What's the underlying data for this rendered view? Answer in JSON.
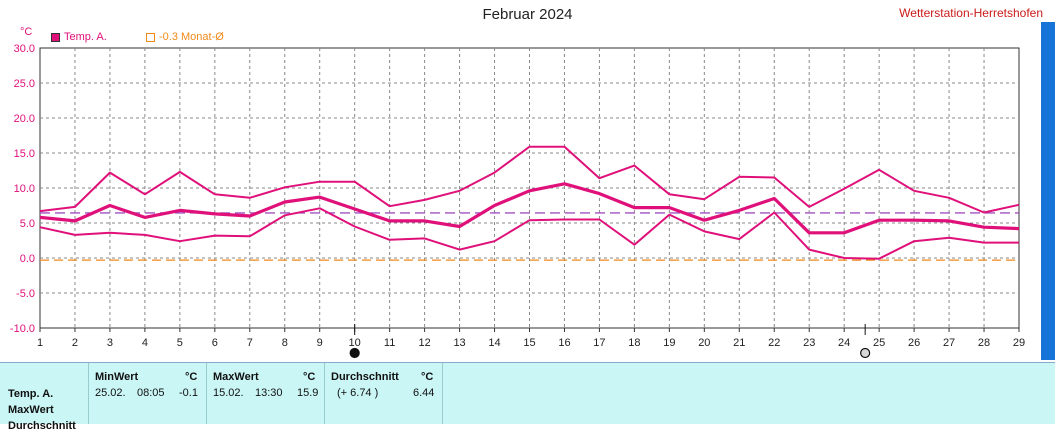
{
  "header": {
    "title": "Februar 2024",
    "station": "Wetterstation-Herretshofen",
    "unit": "°C"
  },
  "legend": [
    {
      "label": "Temp. A.",
      "color": "#e0107a"
    },
    {
      "label": "-0.3 Monat-Ø",
      "color": "#f08a1a"
    }
  ],
  "chart_data": {
    "type": "line",
    "x": [
      1,
      2,
      3,
      4,
      5,
      6,
      7,
      8,
      9,
      10,
      11,
      12,
      13,
      14,
      15,
      16,
      17,
      18,
      19,
      20,
      21,
      22,
      23,
      24,
      25,
      26,
      27,
      28,
      29
    ],
    "xlim": [
      1,
      29
    ],
    "ylim": [
      -10,
      30
    ],
    "yticks": [
      "30.0",
      "25.0",
      "20.0",
      "15.0",
      "10.0",
      "5.0",
      "0.0",
      "-5.0",
      "-10.0"
    ],
    "grid": true,
    "legend_position": "top-left",
    "series": [
      {
        "name": "Temp. A.",
        "role": "max",
        "values": [
          6.7,
          7.3,
          12.2,
          9.1,
          12.3,
          9.1,
          8.6,
          10.1,
          10.9,
          10.9,
          7.4,
          8.3,
          9.6,
          12.2,
          15.9,
          15.9,
          11.4,
          13.2,
          9.1,
          8.4,
          11.6,
          11.5,
          7.3,
          9.9,
          12.6,
          9.6,
          8.6,
          6.5,
          7.6
        ]
      },
      {
        "name": "Temp. A.",
        "role": "mean",
        "values": [
          5.8,
          5.3,
          7.5,
          5.8,
          6.8,
          6.3,
          6.0,
          8.0,
          8.7,
          7.0,
          5.3,
          5.3,
          4.5,
          7.5,
          9.6,
          10.6,
          9.2,
          7.2,
          7.2,
          5.4,
          6.8,
          8.5,
          3.6,
          3.6,
          5.4,
          5.4,
          5.3,
          4.4,
          4.2
        ]
      },
      {
        "name": "Temp. A.",
        "role": "min",
        "values": [
          4.4,
          3.3,
          3.6,
          3.3,
          2.4,
          3.2,
          3.1,
          6.1,
          7.1,
          4.5,
          2.6,
          2.8,
          1.2,
          2.4,
          5.4,
          5.5,
          5.5,
          1.9,
          6.2,
          3.8,
          2.7,
          6.5,
          1.2,
          0.0,
          -0.1,
          2.4,
          2.9,
          2.2,
          2.2
        ]
      }
    ],
    "reference_lines": [
      {
        "label": "-0.3 Monat-Ø",
        "value": -0.3,
        "color": "#f08a1a"
      },
      {
        "value": 6.44,
        "color": "#a050c0"
      }
    ],
    "markers": [
      {
        "x": 10,
        "symbol": "new-moon-icon"
      },
      {
        "x": 24.6,
        "symbol": "full-moon-icon"
      }
    ]
  },
  "stats": {
    "row_labels": [
      "Temp. A.",
      "MaxWert",
      "Durchschnitt"
    ],
    "min": {
      "header": "MinWert",
      "unit": "°C",
      "date": "25.02.",
      "time": "08:05",
      "value": "-0.1"
    },
    "max": {
      "header": "MaxWert",
      "unit": "°C",
      "date": "15.02.",
      "time": "13:30",
      "value": "15.9"
    },
    "avg": {
      "header": "Durchschnitt",
      "unit": "°C",
      "delta": "(+ 6.74 )",
      "value": "6.44"
    }
  }
}
